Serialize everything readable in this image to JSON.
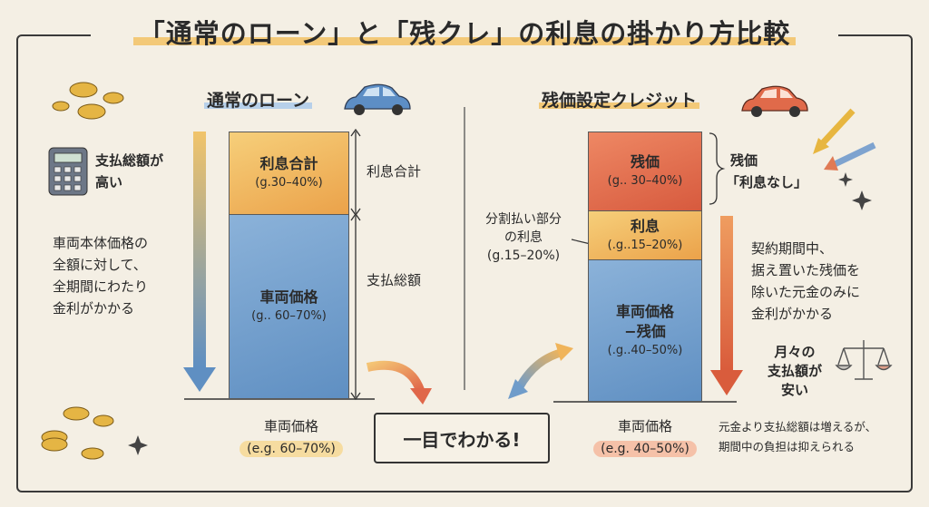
{
  "title": "「通常のローン」と「残クレ」の利息の掛かり方比較",
  "left": {
    "heading": "通常のローン",
    "side_top": "支払総額が\n高い",
    "side_desc": "車両本体価格の\n全額に対して、\n全期間にわたり\n金利がかかる",
    "bar_top": {
      "label": "利息合計",
      "range": "(g.30–40%)"
    },
    "bar_bottom": {
      "label": "車両価格",
      "range": "(g.. 60–70%)"
    },
    "brace_top": "利息合計",
    "brace_total": "支払総額",
    "base_label": "車両価格",
    "base_range": "(e.g. 60–70%)"
  },
  "center": {
    "box_label": "一目でわかる!"
  },
  "right": {
    "heading": "残価設定クレジット",
    "bar_top": {
      "label": "残価",
      "range": "(g.. 30–40%)"
    },
    "bar_mid": {
      "label": "利息",
      "range": "(.g..15–20%)"
    },
    "bar_bottom": {
      "label": "車両価格\n−残価",
      "range": "(.g..40–50%)"
    },
    "brace_label_1": "残価",
    "brace_label_2": "「利息なし」",
    "left_note": "分割払い部分\nの利息\n(g.15–20%)",
    "side_desc": "契約期間中、\n据え置いた残価を\n除いた元金のみに\n金利がかかる",
    "monthly": "月々の\n支払額が\n安い",
    "base_label": "車両価格",
    "base_range": "(e.g. 40–50%)",
    "footnote_a": "元金より支払総額は増えるが、",
    "footnote_b": "期間中の負担は抑えられる"
  },
  "colors": {
    "blue": "#6f9cca",
    "orange": "#f0b45a",
    "red": "#e06f4e",
    "outline": "#333333"
  },
  "icons": [
    "coins-icon",
    "calculator-icon",
    "blue-car-icon",
    "red-car-icon",
    "down-arrow-icon",
    "curved-arrow-icon",
    "double-arrow-icon",
    "scale-icon",
    "sparkle-icon"
  ]
}
